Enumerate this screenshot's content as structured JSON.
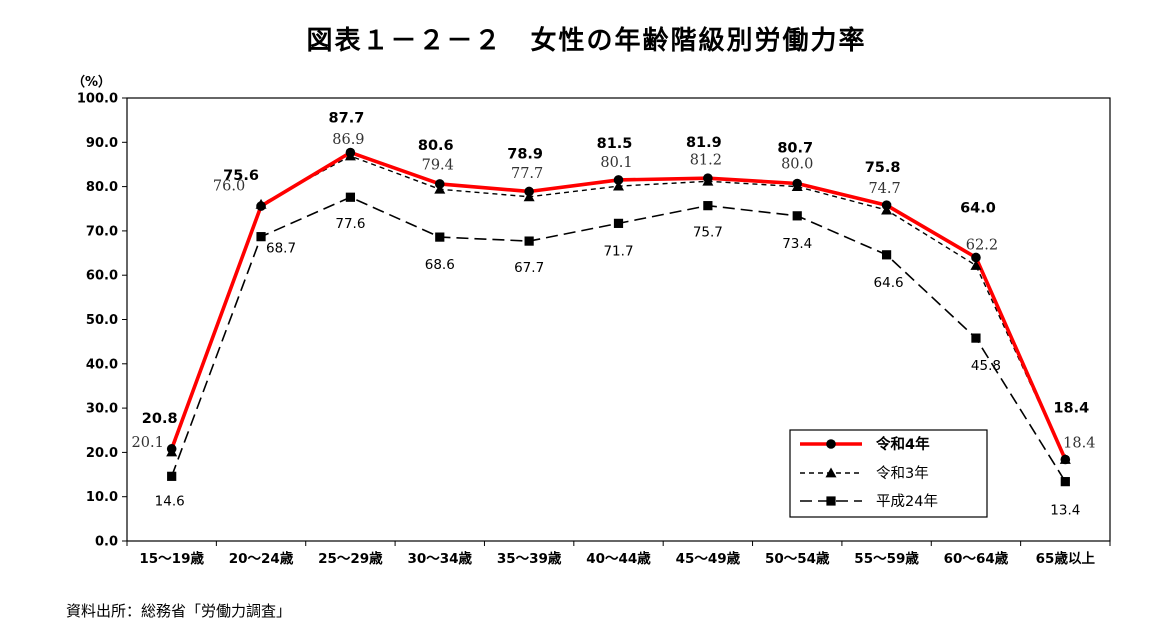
{
  "title": "図表１－２－２　女性の年齢階級別労働力率",
  "source": "資料出所：総務省「労働力調査」",
  "chart_data": {
    "type": "line",
    "ylabel": "（%）",
    "ylim": [
      0,
      100
    ],
    "ytick_step": 10,
    "categories": [
      "15～19歳",
      "20～24歳",
      "25～29歳",
      "30～34歳",
      "35～39歳",
      "40～44歳",
      "45～49歳",
      "50～54歳",
      "55～59歳",
      "60～64歳",
      "65歳以上"
    ],
    "series": [
      {
        "name": "令和4年",
        "values": [
          20.8,
          75.6,
          87.7,
          80.6,
          78.9,
          81.5,
          81.9,
          80.7,
          75.8,
          64.0,
          18.4
        ],
        "color": "#ff0000",
        "marker": "circle",
        "style": "solid-thick"
      },
      {
        "name": "令和3年",
        "values": [
          20.1,
          76.0,
          86.9,
          79.4,
          77.7,
          80.1,
          81.2,
          80.0,
          74.7,
          62.2,
          18.4
        ],
        "color": "#000000",
        "marker": "triangle",
        "style": "short-dash"
      },
      {
        "name": "平成24年",
        "values": [
          14.6,
          68.7,
          77.6,
          68.6,
          67.7,
          71.7,
          75.7,
          73.4,
          64.6,
          45.8,
          13.4
        ],
        "color": "#000000",
        "marker": "square",
        "style": "long-dash"
      }
    ],
    "grid": false,
    "legend_position": "bottom-right"
  }
}
